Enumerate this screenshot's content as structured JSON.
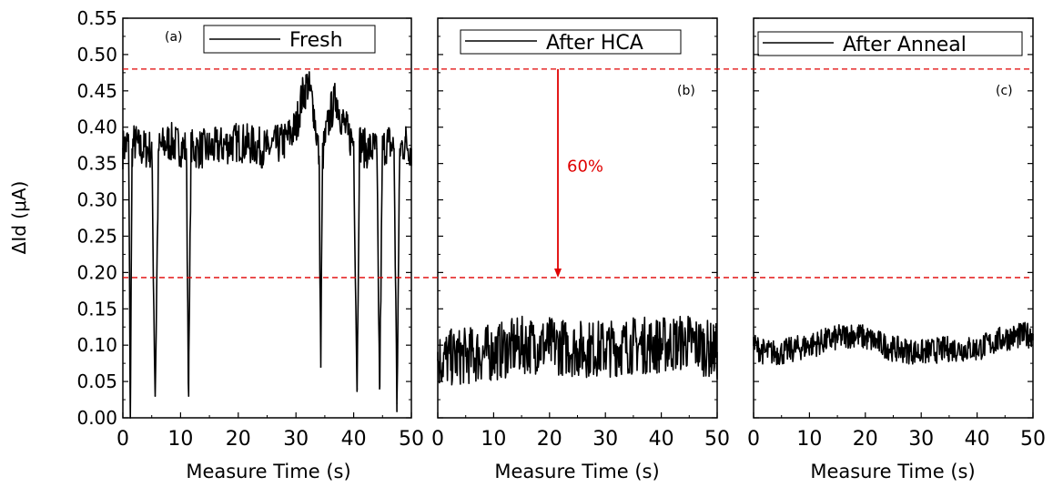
{
  "chart_data": {
    "type": "line",
    "shared_ylabel": "ΔId (μA)",
    "ylim": [
      0,
      0.55
    ],
    "yticks": [
      0.0,
      0.05,
      0.1,
      0.15,
      0.2,
      0.25,
      0.3,
      0.35,
      0.4,
      0.45,
      0.5,
      0.55
    ],
    "ytick_labels": [
      "0.00",
      "0.05",
      "0.10",
      "0.15",
      "0.20",
      "0.25",
      "0.30",
      "0.35",
      "0.40",
      "0.45",
      "0.50",
      "0.55"
    ],
    "xlim": [
      0,
      50
    ],
    "xticks": [
      0,
      10,
      20,
      30,
      40,
      50
    ],
    "reference_lines": [
      {
        "y": 0.48,
        "style": "dashed",
        "color": "#e00000"
      },
      {
        "y": 0.193,
        "style": "dashed",
        "color": "#e00000"
      }
    ],
    "annotation": {
      "text": "60%",
      "panel": 1,
      "x": 21.5,
      "y_from": 0.48,
      "y_to": 0.193,
      "color": "#e00000"
    },
    "panels": [
      {
        "panel_label": "(a)",
        "xlabel": "Measure Time (s)",
        "legend": "Fresh",
        "series": [
          {
            "name": "Fresh",
            "color": "#000000",
            "x": [
              0,
              1,
              1.3,
              1.6,
              2,
              3,
              5,
              5.6,
              6.2,
              8,
              11,
              11.4,
              11.8,
              15,
              20,
              25,
              28,
              30,
              31,
              32,
              33,
              34,
              34.3,
              34.6,
              35,
              36,
              37,
              38,
              39,
              40,
              40.6,
              41,
              42,
              44,
              44.5,
              45,
              46,
              47,
              47.5,
              48,
              49,
              50
            ],
            "y": [
              0.37,
              0.38,
              0.0,
              0.37,
              0.38,
              0.37,
              0.37,
              0.03,
              0.37,
              0.38,
              0.37,
              0.03,
              0.37,
              0.37,
              0.38,
              0.37,
              0.38,
              0.4,
              0.44,
              0.46,
              0.43,
              0.36,
              0.07,
              0.36,
              0.38,
              0.42,
              0.44,
              0.41,
              0.39,
              0.38,
              0.04,
              0.38,
              0.37,
              0.37,
              0.04,
              0.37,
              0.38,
              0.37,
              0.02,
              0.37,
              0.38,
              0.37
            ]
          }
        ]
      },
      {
        "panel_label": "(b)",
        "xlabel": "Measure Time (s)",
        "legend": "After HCA",
        "series": [
          {
            "name": "After HCA",
            "color": "#000000",
            "x": [
              0,
              5,
              10,
              15,
              20,
              25,
              30,
              35,
              40,
              45,
              50
            ],
            "y": [
              0.08,
              0.085,
              0.09,
              0.1,
              0.1,
              0.095,
              0.095,
              0.1,
              0.1,
              0.105,
              0.09
            ]
          }
        ]
      },
      {
        "panel_label": "(c)",
        "xlabel": "Measure Time (s)",
        "legend": "After Anneal",
        "series": [
          {
            "name": "After Anneal",
            "color": "#000000",
            "x": [
              0,
              2,
              5,
              10,
              15,
              18,
              20,
              25,
              30,
              35,
              40,
              45,
              50
            ],
            "y": [
              0.1,
              0.09,
              0.09,
              0.1,
              0.11,
              0.115,
              0.11,
              0.095,
              0.09,
              0.095,
              0.095,
              0.11,
              0.115
            ]
          }
        ]
      }
    ]
  }
}
